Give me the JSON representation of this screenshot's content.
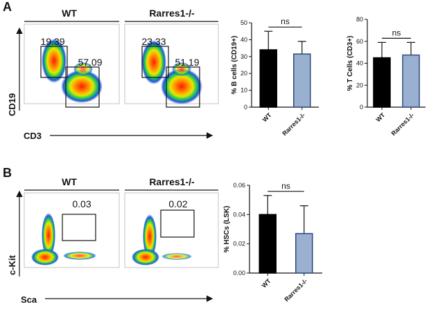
{
  "panel_labels": [
    "A",
    "B"
  ],
  "flow": {
    "top": {
      "headers": [
        "WT",
        "Rarres1-/-"
      ],
      "y_label": "CD19",
      "x_label": "CD3",
      "gates": [
        [
          "19.39",
          "57.09"
        ],
        [
          "23.33",
          "51.19"
        ]
      ]
    },
    "bottom": {
      "headers": [
        "WT",
        "Rarres1-/-"
      ],
      "y_label": "c-Kit",
      "x_label": "Sca",
      "gates": [
        [
          "0.03"
        ],
        [
          "0.02"
        ]
      ]
    }
  },
  "chart_data": [
    {
      "type": "bar",
      "y_label": "% B cells (CD19+)",
      "categories": [
        "WT",
        "Rarres1-/-"
      ],
      "values": [
        34,
        31.5
      ],
      "errors": [
        11,
        7.5
      ],
      "colors": [
        "#000000",
        "#9ab0d0"
      ],
      "ylim": [
        0,
        50
      ],
      "yticks": [
        0,
        10,
        20,
        30,
        40,
        50
      ],
      "annotation": "ns"
    },
    {
      "type": "bar",
      "y_label": "% T Cells (CD3+)",
      "categories": [
        "WT",
        "Rarres1-/-"
      ],
      "values": [
        45,
        47.5
      ],
      "errors": [
        14,
        11.5
      ],
      "colors": [
        "#000000",
        "#9ab0d0"
      ],
      "ylim": [
        0,
        80
      ],
      "yticks": [
        0,
        20,
        40,
        60,
        80
      ],
      "annotation": "ns"
    },
    {
      "type": "bar",
      "y_label": "% HSCs (LSK)",
      "categories": [
        "WT",
        "Rarres1-/-"
      ],
      "values": [
        0.04,
        0.027
      ],
      "errors": [
        0.013,
        0.019
      ],
      "colors": [
        "#000000",
        "#9ab0d0"
      ],
      "ylim": [
        0,
        0.06
      ],
      "yticks": [
        {
          "value": 0,
          "label": "0.00"
        },
        {
          "value": 0.02,
          "label": "0.02"
        },
        {
          "value": 0.04,
          "label": "0.04"
        },
        {
          "value": 0.06,
          "label": "0.06"
        }
      ],
      "annotation": "ns"
    }
  ]
}
